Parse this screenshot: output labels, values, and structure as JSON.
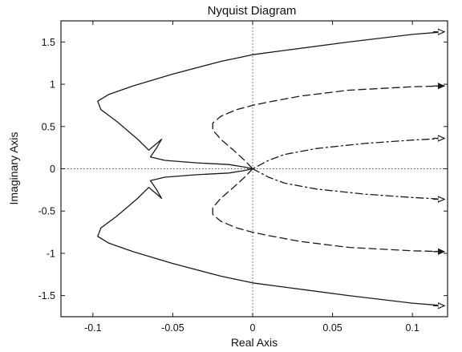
{
  "chart_data": {
    "type": "line",
    "title": "Nyquist Diagram",
    "xlabel": "Real Axis",
    "ylabel": "Imaginary Axis",
    "xlim": [
      -0.12,
      0.122
    ],
    "ylim": [
      -1.75,
      1.75
    ],
    "xticks": [
      -0.1,
      -0.05,
      0,
      0.05,
      0.1
    ],
    "xtick_labels": [
      "-0.1",
      "-0.05",
      "0",
      "0.05",
      "0.1"
    ],
    "yticks": [
      1.5,
      1,
      0.5,
      0,
      -0.5,
      -1,
      -1.5
    ],
    "ytick_labels": [
      "1.5",
      "1",
      "0.5",
      "0",
      "-0.5",
      "-1",
      "-1.5"
    ],
    "grid": false,
    "zero_lines": true,
    "colors": {
      "line": "#1a1a1a",
      "zero_line": "#555555"
    },
    "series": [
      {
        "style": "solid",
        "arrow": "open",
        "x": [
          0.12,
          0.1,
          0.06,
          0.02,
          0.0,
          -0.02,
          -0.05,
          -0.075,
          -0.09,
          -0.097,
          -0.095,
          -0.085,
          -0.072,
          -0.065,
          -0.06,
          -0.057,
          -0.06,
          -0.064,
          -0.055,
          -0.035,
          -0.015,
          -0.005,
          0.0
        ],
        "y": [
          1.62,
          1.59,
          1.5,
          1.4,
          1.35,
          1.27,
          1.12,
          0.98,
          0.88,
          0.8,
          0.7,
          0.56,
          0.35,
          0.22,
          0.3,
          0.35,
          0.25,
          0.14,
          0.1,
          0.07,
          0.05,
          0.02,
          0.0
        ]
      },
      {
        "style": "solid",
        "arrow": "open",
        "x": [
          0.0,
          -0.005,
          -0.015,
          -0.035,
          -0.055,
          -0.064,
          -0.06,
          -0.057,
          -0.06,
          -0.065,
          -0.072,
          -0.085,
          -0.095,
          -0.097,
          -0.09,
          -0.075,
          -0.05,
          -0.02,
          0.0,
          0.02,
          0.06,
          0.1,
          0.12
        ],
        "y": [
          0.0,
          -0.02,
          -0.05,
          -0.07,
          -0.1,
          -0.14,
          -0.25,
          -0.35,
          -0.3,
          -0.22,
          -0.35,
          -0.56,
          -0.7,
          -0.8,
          -0.88,
          -0.98,
          -1.12,
          -1.27,
          -1.35,
          -1.4,
          -1.5,
          -1.59,
          -1.62
        ]
      },
      {
        "style": "dashed",
        "arrow": "filled",
        "x": [
          0.12,
          0.1,
          0.06,
          0.03,
          0.01,
          0.0,
          -0.01,
          -0.02,
          -0.025,
          -0.025,
          -0.02,
          -0.012,
          -0.005,
          0.0
        ],
        "y": [
          0.98,
          0.97,
          0.93,
          0.86,
          0.79,
          0.75,
          0.7,
          0.62,
          0.54,
          0.46,
          0.35,
          0.22,
          0.1,
          0.0
        ]
      },
      {
        "style": "dashed",
        "arrow": "filled",
        "x": [
          0.0,
          -0.005,
          -0.012,
          -0.02,
          -0.025,
          -0.025,
          -0.02,
          -0.01,
          0.0,
          0.01,
          0.03,
          0.06,
          0.1,
          0.12
        ],
        "y": [
          0.0,
          -0.1,
          -0.22,
          -0.35,
          -0.46,
          -0.54,
          -0.62,
          -0.7,
          -0.75,
          -0.79,
          -0.86,
          -0.93,
          -0.97,
          -0.98
        ]
      },
      {
        "style": "dashdot",
        "arrow": "open",
        "x": [
          0.12,
          0.1,
          0.07,
          0.04,
          0.02,
          0.01,
          0.004,
          0.0
        ],
        "y": [
          0.36,
          0.34,
          0.3,
          0.24,
          0.17,
          0.1,
          0.04,
          0.0
        ]
      },
      {
        "style": "dashdot",
        "arrow": "open",
        "x": [
          0.0,
          0.004,
          0.01,
          0.02,
          0.04,
          0.07,
          0.1,
          0.12
        ],
        "y": [
          0.0,
          -0.04,
          -0.1,
          -0.17,
          -0.24,
          -0.3,
          -0.34,
          -0.36
        ]
      }
    ]
  }
}
